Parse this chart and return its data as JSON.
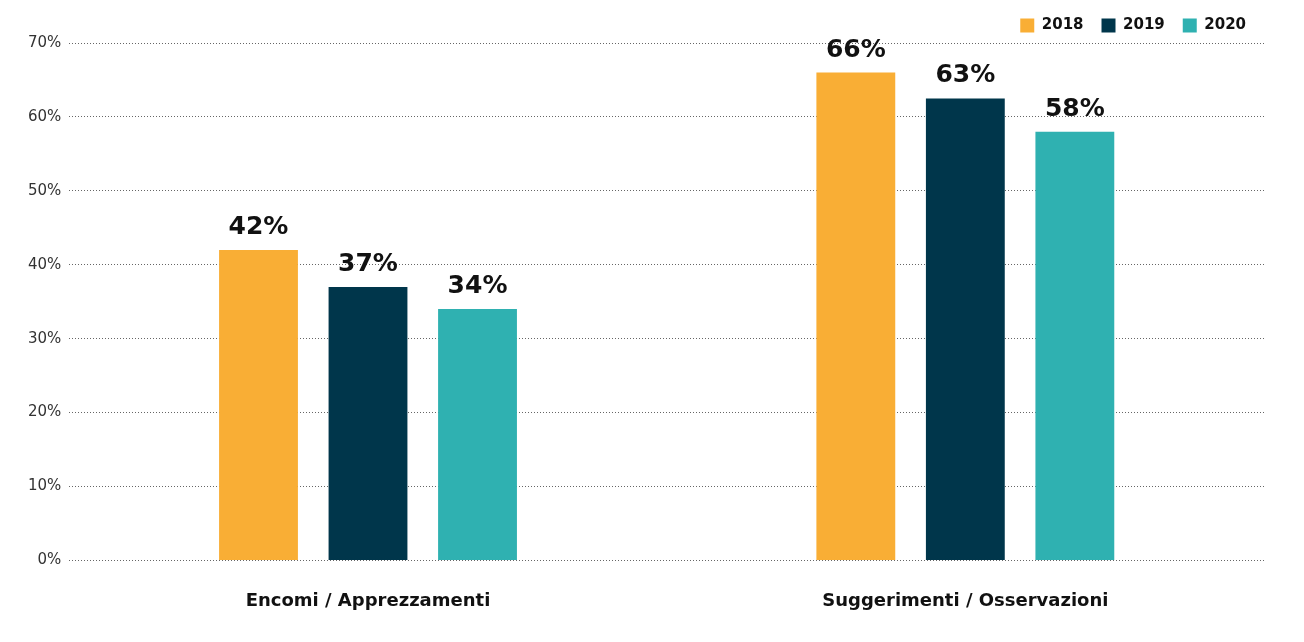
{
  "chart_data": {
    "type": "bar",
    "categories": [
      "Encomi / Apprezzamenti",
      "Suggerimenti / Osservazioni"
    ],
    "series": [
      {
        "name": "2018",
        "color": "#f9ae35",
        "values": [
          42,
          66
        ],
        "value_labels": [
          "42%",
          "66%"
        ]
      },
      {
        "name": "2019",
        "color": "#00364b",
        "values": [
          37,
          62.5
        ],
        "value_labels": [
          "37%",
          "63%"
        ]
      },
      {
        "name": "2020",
        "color": "#2fb1b1",
        "values": [
          34,
          58
        ],
        "value_labels": [
          "34%",
          "58%"
        ]
      }
    ],
    "ylim": [
      0,
      70
    ],
    "yticks": [
      {
        "value": 0,
        "label": "0%"
      },
      {
        "value": 10,
        "label": "10%"
      },
      {
        "value": 20,
        "label": "20%"
      },
      {
        "value": 30,
        "label": "30%"
      },
      {
        "value": 40,
        "label": "40%"
      },
      {
        "value": 50,
        "label": "50%"
      },
      {
        "value": 60,
        "label": "60%"
      },
      {
        "value": 70,
        "label": "70%"
      }
    ],
    "grid": "y",
    "legend": "top right"
  }
}
